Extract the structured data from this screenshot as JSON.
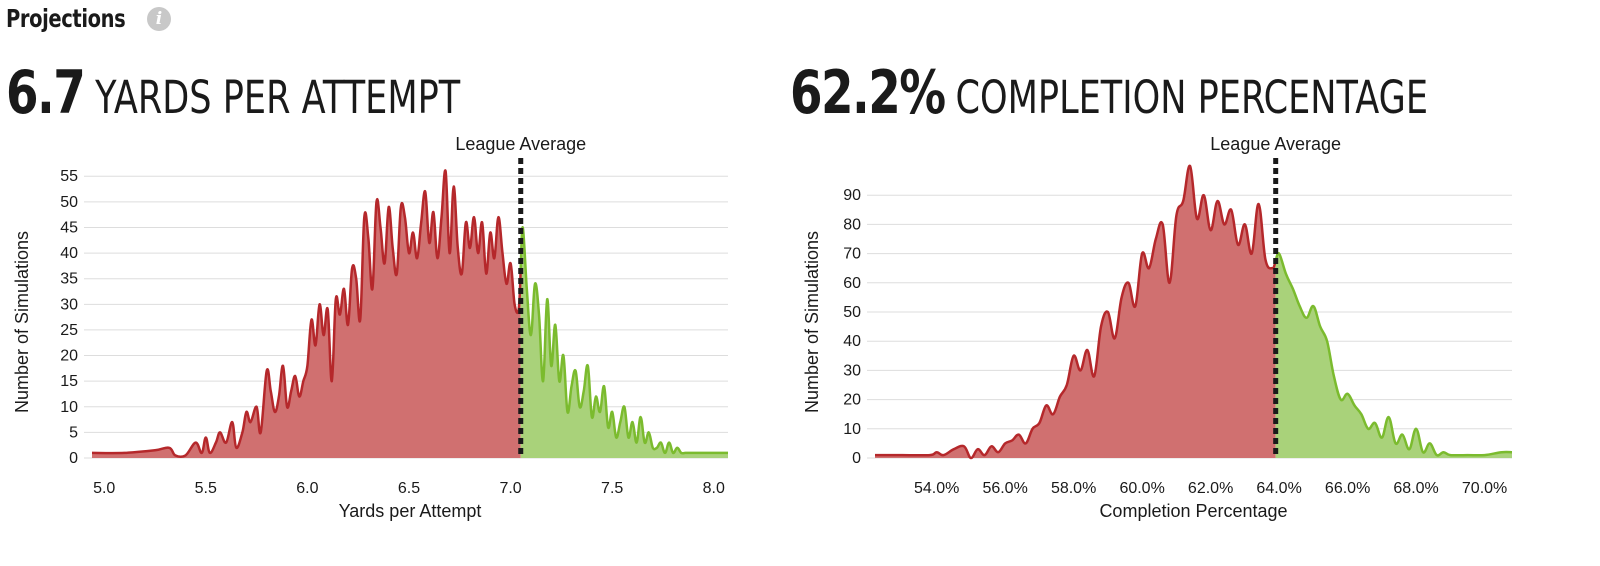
{
  "header": {
    "title": "Projections",
    "info_icon": "info-icon"
  },
  "colors": {
    "below_fill": "#d07070",
    "below_line": "#b5282b",
    "above_fill": "#a9d27a",
    "above_line": "#7bbb2e",
    "grid": "#dddddd",
    "avg_line": "#1a1a1a"
  },
  "chart_data": [
    {
      "type": "area",
      "headline_value": "6.7",
      "headline_label": "YARDS PER ATTEMPT",
      "xlabel": "Yards per Attempt",
      "ylabel": "Number of Simulations",
      "reference_label": "League Average",
      "reference_x": 7.05,
      "xlim": [
        4.94,
        8.07
      ],
      "ylim": [
        0,
        57
      ],
      "x_ticks": [
        5.0,
        5.5,
        6.0,
        6.5,
        7.0,
        7.5,
        8.0
      ],
      "x_tick_labels": [
        "5.0",
        "5.5",
        "6.0",
        "6.5",
        "7.0",
        "7.5",
        "8.0"
      ],
      "y_ticks": [
        0,
        5,
        10,
        15,
        20,
        25,
        30,
        35,
        40,
        45,
        50,
        55
      ],
      "y_tick_labels": [
        "0",
        "5",
        "10",
        "15",
        "20",
        "25",
        "30",
        "35",
        "40",
        "45",
        "50",
        "55"
      ],
      "series": [
        {
          "x": [
            4.94,
            5.1,
            5.25,
            5.32,
            5.35,
            5.4,
            5.45,
            5.48,
            5.5,
            5.52,
            5.55,
            5.57,
            5.6,
            5.63,
            5.65,
            5.68,
            5.7,
            5.72,
            5.75,
            5.77,
            5.8,
            5.82,
            5.84,
            5.86,
            5.88,
            5.9,
            5.92,
            5.94,
            5.96,
            5.98,
            6.0,
            6.02,
            6.04,
            6.06,
            6.08,
            6.1,
            6.12,
            6.14,
            6.16,
            6.18,
            6.2,
            6.22,
            6.24,
            6.26,
            6.28,
            6.3,
            6.32,
            6.34,
            6.36,
            6.38,
            6.4,
            6.42,
            6.44,
            6.46,
            6.48,
            6.5,
            6.52,
            6.54,
            6.56,
            6.58,
            6.6,
            6.62,
            6.64,
            6.66,
            6.68,
            6.7,
            6.72,
            6.74,
            6.76,
            6.78,
            6.8,
            6.82,
            6.84,
            6.86,
            6.88,
            6.9,
            6.92,
            6.94,
            6.96,
            6.98,
            7.0,
            7.02,
            7.04,
            7.06,
            7.08,
            7.1,
            7.12,
            7.14,
            7.16,
            7.18,
            7.2,
            7.22,
            7.24,
            7.26,
            7.28,
            7.3,
            7.32,
            7.34,
            7.36,
            7.38,
            7.4,
            7.42,
            7.44,
            7.46,
            7.48,
            7.5,
            7.52,
            7.54,
            7.56,
            7.58,
            7.6,
            7.62,
            7.64,
            7.66,
            7.68,
            7.7,
            7.72,
            7.74,
            7.76,
            7.78,
            7.8,
            7.82,
            7.84,
            7.86,
            7.88,
            7.9,
            7.95,
            8.0,
            8.07
          ],
          "y": [
            1,
            1,
            1.5,
            2,
            0.5,
            0.5,
            3,
            1,
            4,
            1,
            3,
            5,
            3,
            7,
            2,
            5,
            9,
            7,
            10,
            5,
            17,
            13,
            9,
            12,
            18,
            10,
            13,
            16,
            12,
            15,
            18,
            27,
            22,
            30,
            24,
            29,
            15,
            31,
            28,
            33,
            26,
            37,
            35,
            27,
            47,
            43,
            33,
            50,
            45,
            38,
            49,
            41,
            36,
            49,
            47,
            40,
            44,
            39,
            46,
            52,
            42,
            48,
            39,
            47,
            56,
            40,
            53,
            41,
            36,
            46,
            41,
            47,
            40,
            46,
            36,
            44,
            39,
            47,
            40,
            34,
            38,
            30,
            29,
            45,
            33,
            24,
            34,
            28,
            15,
            31,
            18,
            26,
            15,
            20,
            9,
            14,
            17,
            10,
            13,
            18,
            8,
            12,
            9,
            14,
            6,
            9,
            4,
            7,
            10,
            4,
            7,
            3,
            8,
            3,
            5,
            2,
            2,
            3,
            1,
            3,
            1,
            2,
            1,
            1,
            1,
            1,
            1,
            1,
            1
          ]
        }
      ]
    },
    {
      "type": "area",
      "headline_value": "62.2%",
      "headline_label": "COMPLETION PERCENTAGE",
      "xlabel": "Completion Percentage",
      "ylabel": "Number of Simulations",
      "reference_label": "League Average",
      "reference_x": 63.9,
      "xlim": [
        52.2,
        70.8
      ],
      "ylim": [
        0,
        100
      ],
      "x_ticks": [
        54,
        56,
        58,
        60,
        62,
        64,
        66,
        68,
        70
      ],
      "x_tick_labels": [
        "54.0%",
        "56.0%",
        "58.0%",
        "60.0%",
        "62.0%",
        "64.0%",
        "66.0%",
        "68.0%",
        "70.0%"
      ],
      "y_ticks": [
        0,
        10,
        20,
        30,
        40,
        50,
        60,
        70,
        80,
        90
      ],
      "y_tick_labels": [
        "0",
        "10",
        "20",
        "30",
        "40",
        "50",
        "60",
        "70",
        "80",
        "90"
      ],
      "series": [
        {
          "x": [
            52.2,
            53.0,
            53.8,
            54.0,
            54.2,
            54.5,
            54.8,
            55.0,
            55.2,
            55.4,
            55.6,
            55.8,
            56.0,
            56.2,
            56.4,
            56.6,
            56.8,
            57.0,
            57.2,
            57.4,
            57.6,
            57.8,
            58.0,
            58.2,
            58.4,
            58.6,
            58.8,
            59.0,
            59.2,
            59.4,
            59.6,
            59.8,
            60.0,
            60.2,
            60.4,
            60.6,
            60.8,
            61.0,
            61.2,
            61.4,
            61.6,
            61.8,
            62.0,
            62.2,
            62.4,
            62.6,
            62.8,
            63.0,
            63.2,
            63.4,
            63.6,
            63.8,
            64.0,
            64.2,
            64.4,
            64.6,
            64.8,
            65.0,
            65.2,
            65.4,
            65.6,
            65.8,
            66.0,
            66.2,
            66.4,
            66.6,
            66.8,
            67.0,
            67.2,
            67.4,
            67.6,
            67.8,
            68.0,
            68.2,
            68.4,
            68.6,
            68.8,
            69.0,
            69.5,
            70.0,
            70.5,
            70.8
          ],
          "y": [
            1,
            1,
            1,
            2,
            1,
            3,
            4,
            0,
            3,
            1,
            4,
            2,
            5,
            6,
            8,
            5,
            10,
            12,
            18,
            15,
            21,
            25,
            35,
            30,
            37,
            28,
            45,
            50,
            41,
            55,
            60,
            52,
            70,
            65,
            75,
            80,
            60,
            83,
            88,
            100,
            82,
            90,
            78,
            88,
            80,
            85,
            73,
            80,
            70,
            87,
            68,
            65,
            70,
            63,
            58,
            52,
            48,
            52,
            45,
            40,
            28,
            20,
            22,
            18,
            15,
            10,
            12,
            7,
            14,
            5,
            8,
            3,
            10,
            2,
            5,
            1,
            2,
            1,
            1,
            1,
            2,
            2
          ]
        }
      ]
    }
  ]
}
